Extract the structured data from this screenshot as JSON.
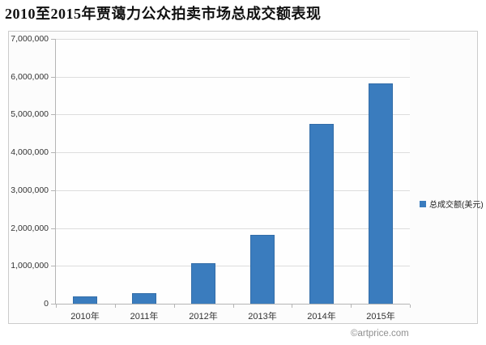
{
  "title": "2010至2015年贾蔼力公众拍卖市场总成交额表现",
  "legend": {
    "label": "总成交额(美元)",
    "marker_color": "#3a7cbe"
  },
  "footer": {
    "copyright": "©artprice.com"
  },
  "colors": {
    "bar": "#3a7cbe",
    "grid": "#dddddd",
    "axis": "#b5b5b5",
    "chart_border": "#cccccc",
    "chart_background": "#fcfcfc"
  },
  "chart_data": {
    "type": "bar",
    "title": "2010至2015年贾蔼力公众拍卖市场总成交额表现",
    "categories": [
      "2010年",
      "2011年",
      "2012年",
      "2013年",
      "2014年",
      "2015年"
    ],
    "series": [
      {
        "name": "总成交额(美元)",
        "values": [
          200000,
          270000,
          1060000,
          1820000,
          4760000,
          5820000
        ]
      }
    ],
    "xlabel": "",
    "ylabel": "",
    "ylim": [
      0,
      7000000
    ],
    "ytick_interval": 1000000,
    "ytick_labels": [
      "0",
      "1,000,000",
      "2,000,000",
      "3,000,000",
      "4,000,000",
      "5,000,000",
      "6,000,000",
      "7,000,000"
    ],
    "grid": true,
    "legend_position": "right"
  }
}
